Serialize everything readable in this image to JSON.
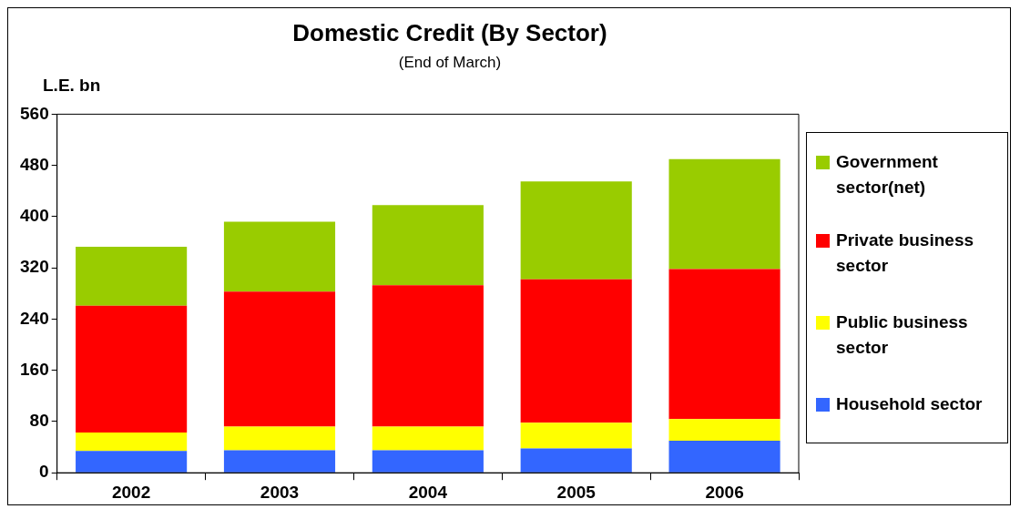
{
  "chart_data": {
    "type": "bar",
    "title": "Domestic Credit (By Sector)",
    "subtitle": "(End of March)",
    "ylabel": "L.E. bn",
    "categories": [
      "2002",
      "2003",
      "2004",
      "2005",
      "2006"
    ],
    "stacked": true,
    "ylim": [
      0,
      560
    ],
    "yticks": [
      0,
      80,
      160,
      240,
      320,
      400,
      480,
      560
    ],
    "grid": false,
    "legend": "right",
    "series": [
      {
        "name": "Household sector",
        "color": "#3366ff",
        "values": [
          34,
          35,
          35,
          38,
          50
        ]
      },
      {
        "name": "Public business sector",
        "color": "#ffff00",
        "values": [
          29,
          37,
          37,
          40,
          34
        ]
      },
      {
        "name": "Private business sector",
        "color": "#ff0000",
        "values": [
          198,
          211,
          221,
          224,
          234
        ]
      },
      {
        "name": "Government sector(net)",
        "color": "#99cc00",
        "values": [
          92,
          109,
          125,
          153,
          172
        ]
      }
    ]
  }
}
